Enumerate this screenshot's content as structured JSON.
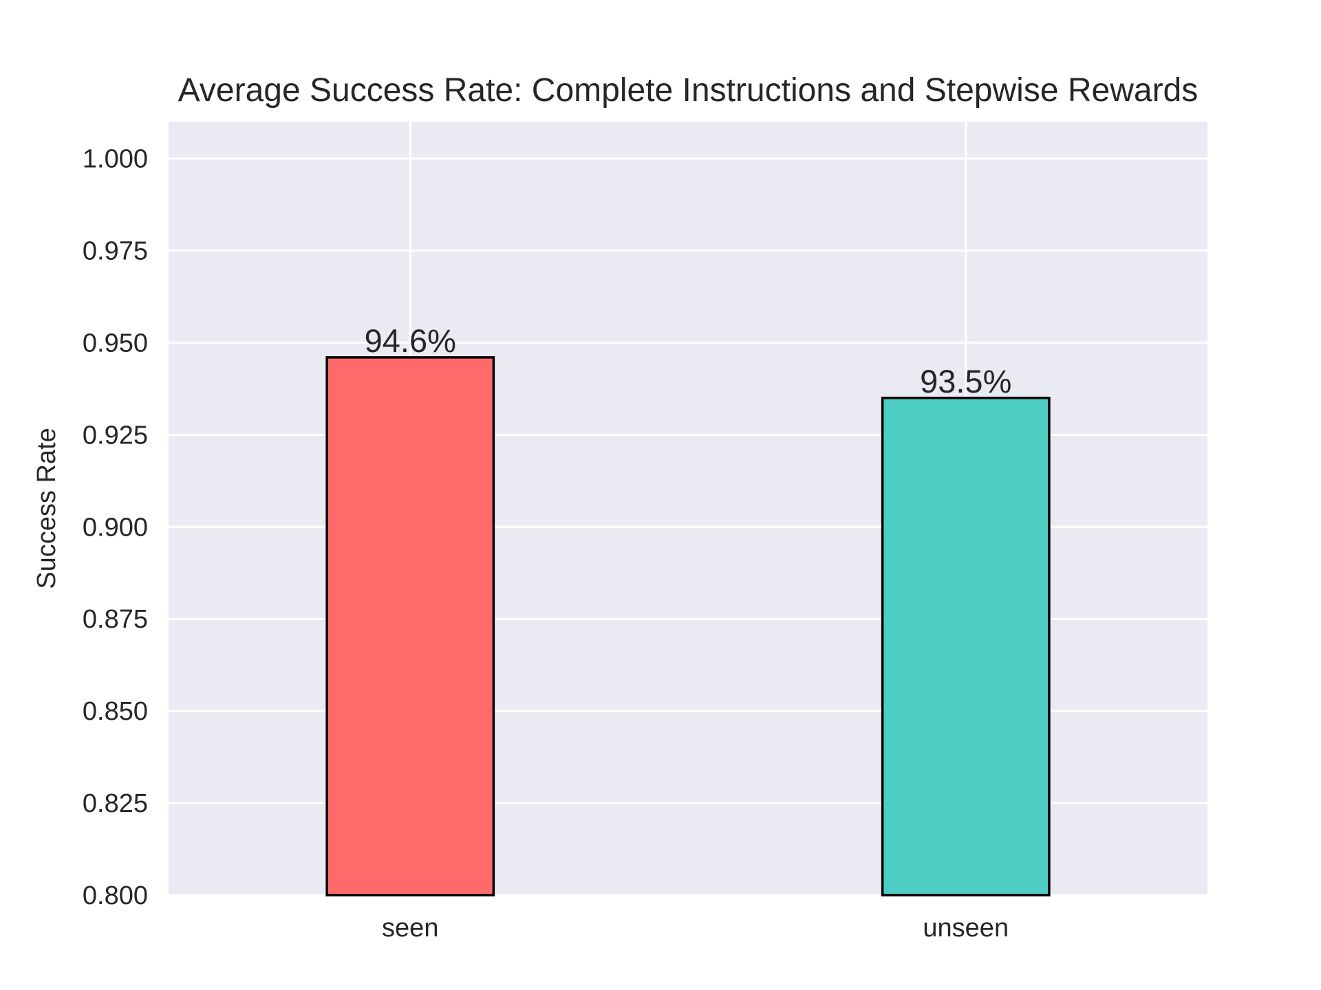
{
  "chart_data": {
    "type": "bar",
    "title": "Average Success Rate: Complete Instructions and Stepwise Rewards",
    "xlabel": "",
    "ylabel": "Success Rate",
    "categories": [
      "seen",
      "unseen"
    ],
    "values": [
      0.946,
      0.935
    ],
    "data_labels": [
      "94.6%",
      "93.5%"
    ],
    "colors": [
      "#FF6B6B",
      "#4ECDC4"
    ],
    "edge_color": "#000000",
    "plot_background": "#EAEAF2",
    "grid_color": "#FFFFFF",
    "grid": true,
    "ylim": [
      0.8,
      1.01
    ],
    "yticks": [
      0.8,
      0.825,
      0.85,
      0.875,
      0.9,
      0.925,
      0.95,
      0.975,
      1.0
    ],
    "ytick_labels": [
      "0.800",
      "0.825",
      "0.850",
      "0.875",
      "0.900",
      "0.925",
      "0.950",
      "0.975",
      "1.000"
    ]
  }
}
